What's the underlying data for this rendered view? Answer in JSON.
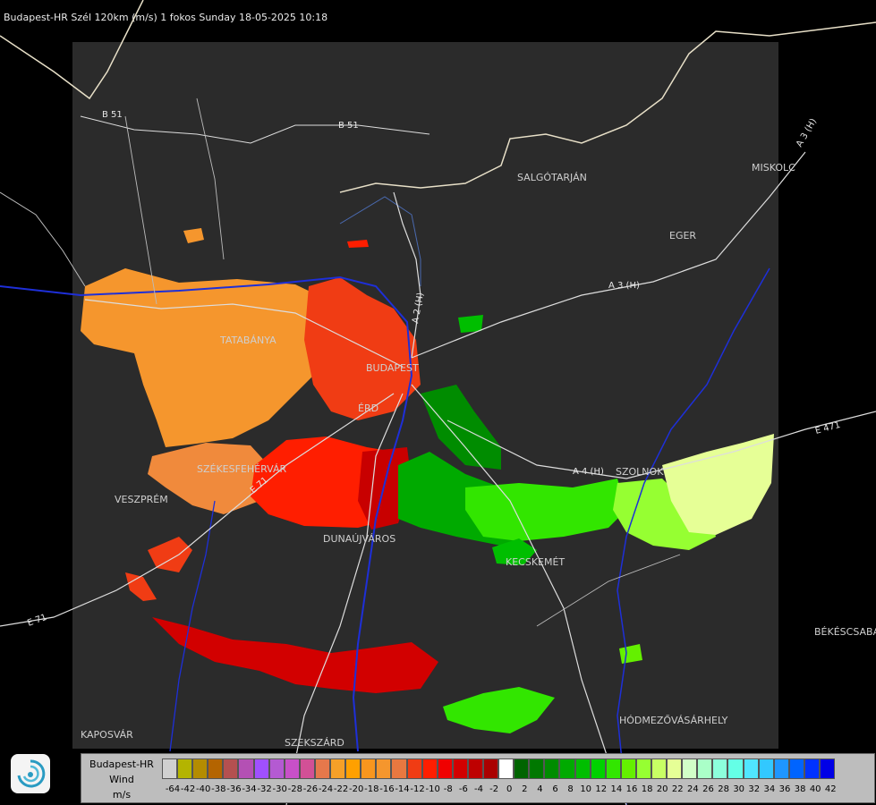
{
  "header": {
    "title": "Budapest-HR Szél 120km (m/s) 1 fokos Sunday 18-05-2025 10:18"
  },
  "map_labels": {
    "cities": [
      "SALGÓTARJÁN",
      "EGER",
      "MISKOLC",
      "TATABÁNYA",
      "BUDAPEST",
      "ÉRD",
      "SZÉKESFEHÉRVÁR",
      "VESZPRÉM",
      "DUNAÚJVÁROS",
      "KECSKEMÉT",
      "SZOLNOK",
      "KAPOSVÁR",
      "SZEKSZÁRD",
      "HÓDMEZŐVÁSÁRHELY",
      "BÉKÉSCSABA"
    ],
    "roads": [
      "B 51",
      "B 51",
      "A 3 (H)",
      "A 3 (H)",
      "A 2 (H)",
      "E 71",
      "E 71",
      "A 4 (H)",
      "E 471"
    ]
  },
  "legend": {
    "title_lines": [
      "Budapest-HR",
      "Wind",
      "m/s"
    ],
    "values": [
      "-64",
      "-42",
      "-40",
      "-38",
      "-36",
      "-34",
      "-32",
      "-30",
      "-28",
      "-26",
      "-24",
      "-22",
      "-20",
      "-18",
      "-16",
      "-14",
      "-12",
      "-10",
      "-8",
      "-6",
      "-4",
      "-2",
      "0",
      "2",
      "4",
      "6",
      "8",
      "10",
      "12",
      "14",
      "16",
      "18",
      "20",
      "22",
      "24",
      "26",
      "28",
      "30",
      "32",
      "34",
      "36",
      "38",
      "40",
      "42"
    ],
    "colors": [
      "#d0d0d0",
      "#b4b400",
      "#b48c00",
      "#b46400",
      "#b45050",
      "#b450b4",
      "#a050ff",
      "#b45ad2",
      "#c850c8",
      "#d25096",
      "#e6784b",
      "#f5a028",
      "#ffa000",
      "#f8961e",
      "#f5962d",
      "#e87840",
      "#f03c14",
      "#ff1e00",
      "#f00000",
      "#d20000",
      "#be0000",
      "#aa0000",
      "#ffffff",
      "#006400",
      "#007800",
      "#008c00",
      "#00aa00",
      "#00be00",
      "#00d200",
      "#32e600",
      "#64f000",
      "#96ff32",
      "#c8ff64",
      "#e6ff96",
      "#d2ffc8",
      "#aaffc8",
      "#8cffdc",
      "#64ffe6",
      "#50e6ff",
      "#32c8ff",
      "#1e96ff",
      "#0064ff",
      "#0032ff",
      "#0000e6"
    ]
  }
}
